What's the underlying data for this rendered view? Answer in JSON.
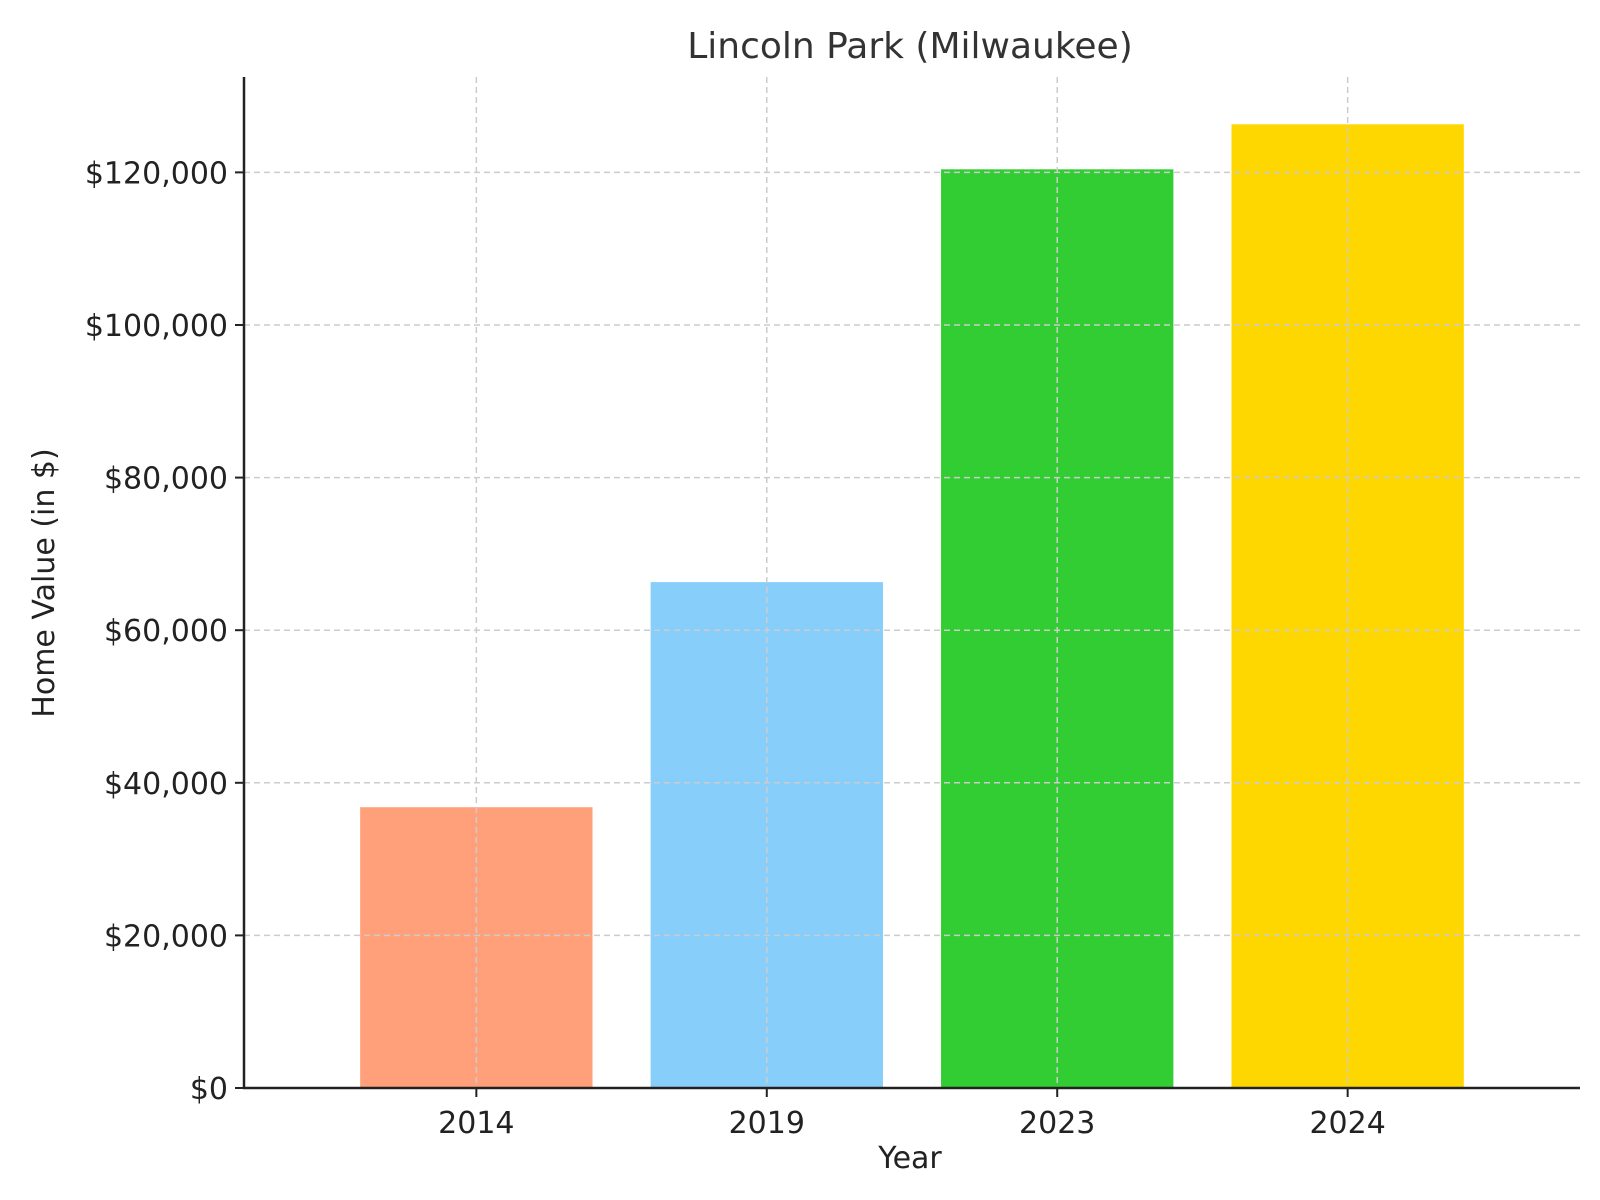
{
  "chart_data": {
    "type": "bar",
    "title": "Lincoln Park (Milwaukee)",
    "xlabel": "Year",
    "ylabel": "Home Value (in $)",
    "categories": [
      "2014",
      "2019",
      "2023",
      "2024"
    ],
    "values": [
      36800,
      66300,
      120400,
      126300
    ],
    "colors": [
      "#FFA07A",
      "#87CEFA",
      "#32CD32",
      "#FFD700"
    ],
    "ylim": [
      0,
      132500
    ],
    "yticks": [
      0,
      20000,
      40000,
      60000,
      80000,
      100000,
      120000
    ],
    "ytick_labels": [
      "$0",
      "$20,000",
      "$40,000",
      "$60,000",
      "$80,000",
      "$100,000",
      "$120,000"
    ],
    "grid": true,
    "grid_style": "dashed",
    "grid_color": "#cccccc",
    "legend": "none"
  }
}
